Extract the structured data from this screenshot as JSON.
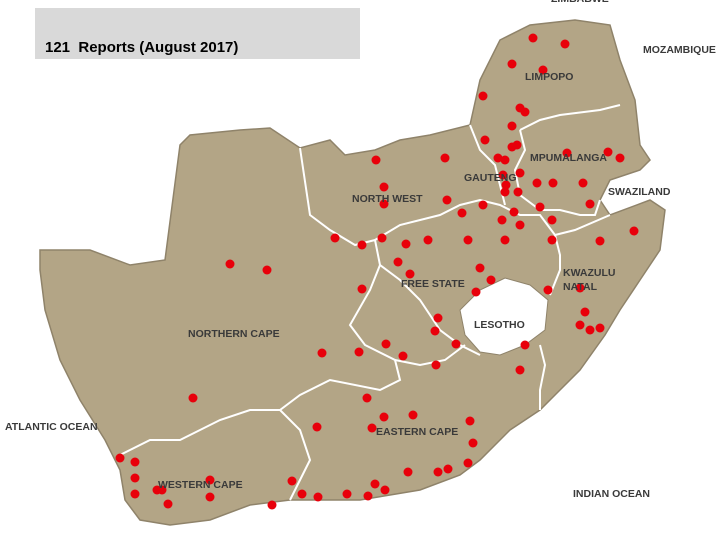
{
  "title": "121  Reports (August 2017)",
  "labels": [
    "ZIMBABWE",
    "MOZAMBIQUE",
    "LIMPOPO",
    "MPUMALANGA",
    "GAUTENG",
    "SWAZILAND",
    "NORTH WEST",
    "FREE STATE",
    "KWAZULU",
    "NATAL",
    "LESOTHO",
    "NORTHERN CAPE",
    "ATLANTIC OCEAN",
    "EASTERN CAPE",
    "INDIAN OCEAN",
    "WESTERN CAPE"
  ]
}
